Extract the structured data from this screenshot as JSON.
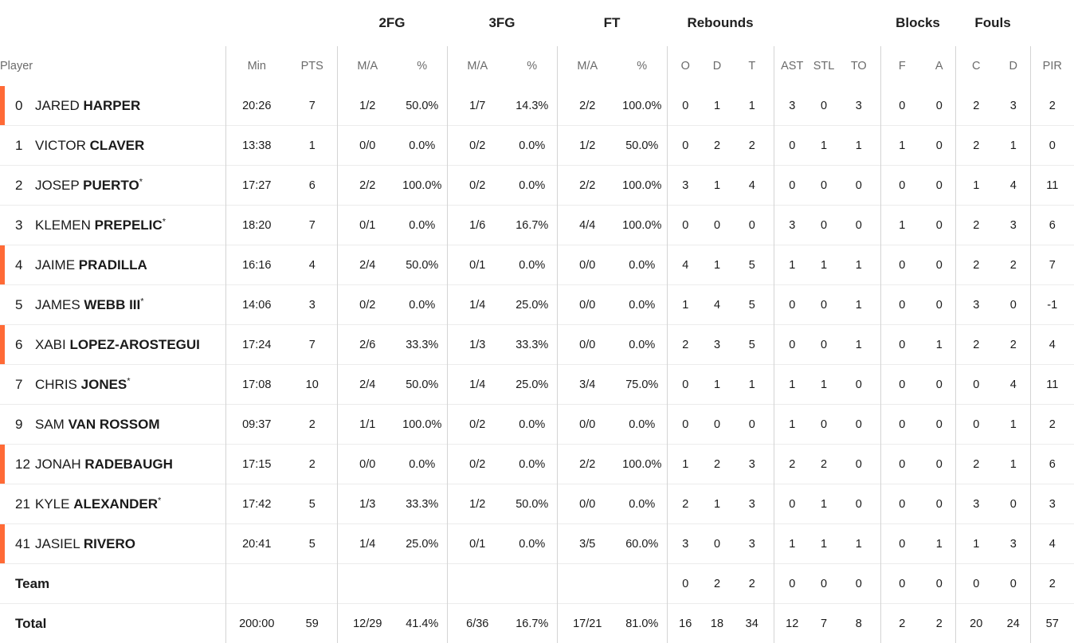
{
  "groups": {
    "fg2": "2FG",
    "fg3": "3FG",
    "ft": "FT",
    "rebounds": "Rebounds",
    "blocks": "Blocks",
    "fouls": "Fouls"
  },
  "columns": {
    "player": "Player",
    "min": "Min",
    "pts": "PTS",
    "fg2_ma": "M/A",
    "fg2_pct": "%",
    "fg3_ma": "M/A",
    "fg3_pct": "%",
    "ft_ma": "M/A",
    "ft_pct": "%",
    "reb_o": "O",
    "reb_d": "D",
    "reb_t": "T",
    "ast": "AST",
    "stl": "STL",
    "to": "TO",
    "blk_f": "F",
    "blk_a": "A",
    "foul_c": "C",
    "foul_d": "D",
    "pir": "PIR"
  },
  "players": [
    {
      "num": "0",
      "first": "JARED",
      "last": "HARPER",
      "star": "",
      "marked": true,
      "min": "20:26",
      "pts": "7",
      "fg2_ma": "1/2",
      "fg2_pct": "50.0%",
      "fg3_ma": "1/7",
      "fg3_pct": "14.3%",
      "ft_ma": "2/2",
      "ft_pct": "100.0%",
      "reb_o": "0",
      "reb_d": "1",
      "reb_t": "1",
      "ast": "3",
      "stl": "0",
      "to": "3",
      "blk_f": "0",
      "blk_a": "0",
      "foul_c": "2",
      "foul_d": "3",
      "pir": "2"
    },
    {
      "num": "1",
      "first": "VICTOR",
      "last": "CLAVER",
      "star": "",
      "marked": false,
      "min": "13:38",
      "pts": "1",
      "fg2_ma": "0/0",
      "fg2_pct": "0.0%",
      "fg3_ma": "0/2",
      "fg3_pct": "0.0%",
      "ft_ma": "1/2",
      "ft_pct": "50.0%",
      "reb_o": "0",
      "reb_d": "2",
      "reb_t": "2",
      "ast": "0",
      "stl": "1",
      "to": "1",
      "blk_f": "1",
      "blk_a": "0",
      "foul_c": "2",
      "foul_d": "1",
      "pir": "0"
    },
    {
      "num": "2",
      "first": "JOSEP",
      "last": "PUERTO",
      "star": "*",
      "marked": false,
      "min": "17:27",
      "pts": "6",
      "fg2_ma": "2/2",
      "fg2_pct": "100.0%",
      "fg3_ma": "0/2",
      "fg3_pct": "0.0%",
      "ft_ma": "2/2",
      "ft_pct": "100.0%",
      "reb_o": "3",
      "reb_d": "1",
      "reb_t": "4",
      "ast": "0",
      "stl": "0",
      "to": "0",
      "blk_f": "0",
      "blk_a": "0",
      "foul_c": "1",
      "foul_d": "4",
      "pir": "11"
    },
    {
      "num": "3",
      "first": "KLEMEN",
      "last": "PREPELIC",
      "star": "*",
      "marked": false,
      "min": "18:20",
      "pts": "7",
      "fg2_ma": "0/1",
      "fg2_pct": "0.0%",
      "fg3_ma": "1/6",
      "fg3_pct": "16.7%",
      "ft_ma": "4/4",
      "ft_pct": "100.0%",
      "reb_o": "0",
      "reb_d": "0",
      "reb_t": "0",
      "ast": "3",
      "stl": "0",
      "to": "0",
      "blk_f": "1",
      "blk_a": "0",
      "foul_c": "2",
      "foul_d": "3",
      "pir": "6"
    },
    {
      "num": "4",
      "first": "JAIME",
      "last": "PRADILLA",
      "star": "",
      "marked": true,
      "min": "16:16",
      "pts": "4",
      "fg2_ma": "2/4",
      "fg2_pct": "50.0%",
      "fg3_ma": "0/1",
      "fg3_pct": "0.0%",
      "ft_ma": "0/0",
      "ft_pct": "0.0%",
      "reb_o": "4",
      "reb_d": "1",
      "reb_t": "5",
      "ast": "1",
      "stl": "1",
      "to": "1",
      "blk_f": "0",
      "blk_a": "0",
      "foul_c": "2",
      "foul_d": "2",
      "pir": "7"
    },
    {
      "num": "5",
      "first": "JAMES",
      "last": "WEBB III",
      "star": "*",
      "marked": false,
      "min": "14:06",
      "pts": "3",
      "fg2_ma": "0/2",
      "fg2_pct": "0.0%",
      "fg3_ma": "1/4",
      "fg3_pct": "25.0%",
      "ft_ma": "0/0",
      "ft_pct": "0.0%",
      "reb_o": "1",
      "reb_d": "4",
      "reb_t": "5",
      "ast": "0",
      "stl": "0",
      "to": "1",
      "blk_f": "0",
      "blk_a": "0",
      "foul_c": "3",
      "foul_d": "0",
      "pir": "-1"
    },
    {
      "num": "6",
      "first": "XABI",
      "last": "LOPEZ-AROSTEGUI",
      "star": "",
      "marked": true,
      "min": "17:24",
      "pts": "7",
      "fg2_ma": "2/6",
      "fg2_pct": "33.3%",
      "fg3_ma": "1/3",
      "fg3_pct": "33.3%",
      "ft_ma": "0/0",
      "ft_pct": "0.0%",
      "reb_o": "2",
      "reb_d": "3",
      "reb_t": "5",
      "ast": "0",
      "stl": "0",
      "to": "1",
      "blk_f": "0",
      "blk_a": "1",
      "foul_c": "2",
      "foul_d": "2",
      "pir": "4"
    },
    {
      "num": "7",
      "first": "CHRIS",
      "last": "JONES",
      "star": "*",
      "marked": false,
      "min": "17:08",
      "pts": "10",
      "fg2_ma": "2/4",
      "fg2_pct": "50.0%",
      "fg3_ma": "1/4",
      "fg3_pct": "25.0%",
      "ft_ma": "3/4",
      "ft_pct": "75.0%",
      "reb_o": "0",
      "reb_d": "1",
      "reb_t": "1",
      "ast": "1",
      "stl": "1",
      "to": "0",
      "blk_f": "0",
      "blk_a": "0",
      "foul_c": "0",
      "foul_d": "4",
      "pir": "11"
    },
    {
      "num": "9",
      "first": "SAM",
      "last": "VAN ROSSOM",
      "star": "",
      "marked": false,
      "min": "09:37",
      "pts": "2",
      "fg2_ma": "1/1",
      "fg2_pct": "100.0%",
      "fg3_ma": "0/2",
      "fg3_pct": "0.0%",
      "ft_ma": "0/0",
      "ft_pct": "0.0%",
      "reb_o": "0",
      "reb_d": "0",
      "reb_t": "0",
      "ast": "1",
      "stl": "0",
      "to": "0",
      "blk_f": "0",
      "blk_a": "0",
      "foul_c": "0",
      "foul_d": "1",
      "pir": "2"
    },
    {
      "num": "12",
      "first": "JONAH",
      "last": "RADEBAUGH",
      "star": "",
      "marked": true,
      "min": "17:15",
      "pts": "2",
      "fg2_ma": "0/0",
      "fg2_pct": "0.0%",
      "fg3_ma": "0/2",
      "fg3_pct": "0.0%",
      "ft_ma": "2/2",
      "ft_pct": "100.0%",
      "reb_o": "1",
      "reb_d": "2",
      "reb_t": "3",
      "ast": "2",
      "stl": "2",
      "to": "0",
      "blk_f": "0",
      "blk_a": "0",
      "foul_c": "2",
      "foul_d": "1",
      "pir": "6"
    },
    {
      "num": "21",
      "first": "KYLE",
      "last": "ALEXANDER",
      "star": "*",
      "marked": false,
      "min": "17:42",
      "pts": "5",
      "fg2_ma": "1/3",
      "fg2_pct": "33.3%",
      "fg3_ma": "1/2",
      "fg3_pct": "50.0%",
      "ft_ma": "0/0",
      "ft_pct": "0.0%",
      "reb_o": "2",
      "reb_d": "1",
      "reb_t": "3",
      "ast": "0",
      "stl": "1",
      "to": "0",
      "blk_f": "0",
      "blk_a": "0",
      "foul_c": "3",
      "foul_d": "0",
      "pir": "3"
    },
    {
      "num": "41",
      "first": "JASIEL",
      "last": "RIVERO",
      "star": "",
      "marked": true,
      "min": "20:41",
      "pts": "5",
      "fg2_ma": "1/4",
      "fg2_pct": "25.0%",
      "fg3_ma": "0/1",
      "fg3_pct": "0.0%",
      "ft_ma": "3/5",
      "ft_pct": "60.0%",
      "reb_o": "3",
      "reb_d": "0",
      "reb_t": "3",
      "ast": "1",
      "stl": "1",
      "to": "1",
      "blk_f": "0",
      "blk_a": "1",
      "foul_c": "1",
      "foul_d": "3",
      "pir": "4"
    }
  ],
  "team": {
    "label": "Team",
    "min": "",
    "pts": "",
    "fg2_ma": "",
    "fg2_pct": "",
    "fg3_ma": "",
    "fg3_pct": "",
    "ft_ma": "",
    "ft_pct": "",
    "reb_o": "0",
    "reb_d": "2",
    "reb_t": "2",
    "ast": "0",
    "stl": "0",
    "to": "0",
    "blk_f": "0",
    "blk_a": "0",
    "foul_c": "0",
    "foul_d": "0",
    "pir": "2"
  },
  "total": {
    "label": "Total",
    "min": "200:00",
    "pts": "59",
    "fg2_ma": "12/29",
    "fg2_pct": "41.4%",
    "fg3_ma": "6/36",
    "fg3_pct": "16.7%",
    "ft_ma": "17/21",
    "ft_pct": "81.0%",
    "reb_o": "16",
    "reb_d": "18",
    "reb_t": "34",
    "ast": "12",
    "stl": "7",
    "to": "8",
    "blk_f": "2",
    "blk_a": "2",
    "foul_c": "20",
    "foul_d": "24",
    "pir": "57"
  },
  "colors": {
    "marker": "#ff6a36",
    "divider": "#d4d4d4",
    "row_line": "#ececec"
  },
  "icons": {
    "starter": "asterisk"
  }
}
